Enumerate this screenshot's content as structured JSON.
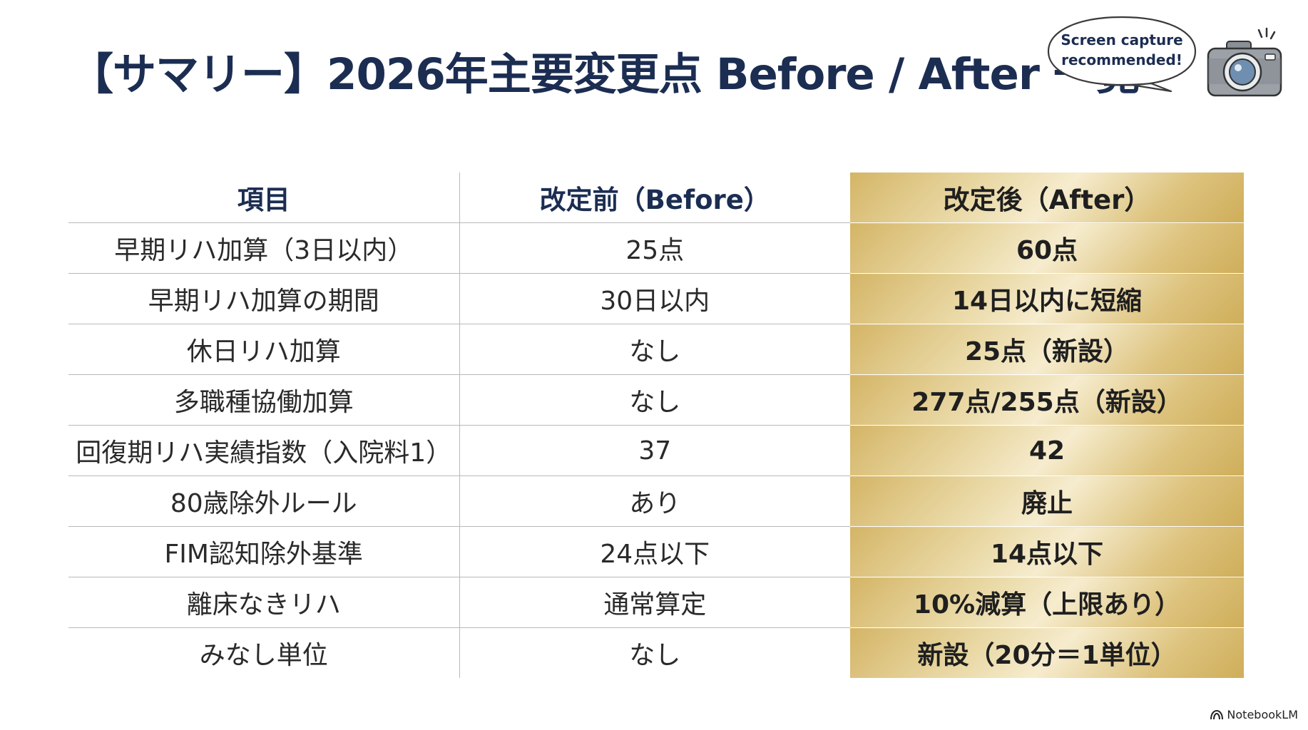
{
  "title": "【サマリー】2026年主要変更点 Before / After 一覧",
  "callout": {
    "line1": "Screen capture",
    "line2": "recommended!",
    "icon": "camera-icon"
  },
  "table": {
    "headers": {
      "item": "項目",
      "before": "改定前（Before）",
      "after": "改定後（After）"
    },
    "rows": [
      {
        "item": "早期リハ加算（3日以内）",
        "before": "25点",
        "after": "60点"
      },
      {
        "item": "早期リハ加算の期間",
        "before": "30日以内",
        "after": "14日以内に短縮"
      },
      {
        "item": "休日リハ加算",
        "before": "なし",
        "after": "25点（新設）"
      },
      {
        "item": "多職種協働加算",
        "before": "なし",
        "after": "277点/255点（新設）"
      },
      {
        "item": "回復期リハ実績指数（入院料1）",
        "before": "37",
        "after": "42"
      },
      {
        "item": "80歳除外ルール",
        "before": "あり",
        "after": "廃止"
      },
      {
        "item": "FIM認知除外基準",
        "before": "24点以下",
        "after": "14点以下"
      },
      {
        "item": "離床なきリハ",
        "before": "通常算定",
        "after": "10%減算（上限あり）"
      },
      {
        "item": "みなし単位",
        "before": "なし",
        "after": "新設（20分＝1単位）"
      }
    ]
  },
  "colors": {
    "title": "#1c2d52",
    "gold": "#d4b567"
  },
  "footer": {
    "brand": "NotebookLM",
    "icon": "notebooklm-logo-icon"
  }
}
